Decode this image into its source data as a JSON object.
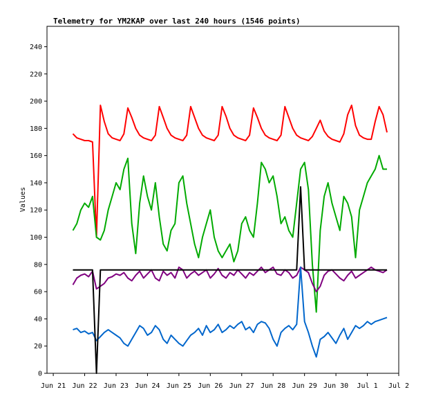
{
  "chart_data": {
    "type": "line",
    "title": "Telemetry for YM2KAP over last 240 hours (1546 points)",
    "y_label": "Values",
    "x": [
      0.625,
      0.75,
      0.875,
      1.0,
      1.125,
      1.25,
      1.375,
      1.5,
      1.625,
      1.75,
      1.875,
      2.0,
      2.125,
      2.25,
      2.375,
      2.5,
      2.625,
      2.75,
      2.875,
      3.0,
      3.125,
      3.25,
      3.375,
      3.5,
      3.625,
      3.75,
      3.875,
      4.0,
      4.125,
      4.25,
      4.375,
      4.5,
      4.625,
      4.75,
      4.875,
      5.0,
      5.125,
      5.25,
      5.375,
      5.5,
      5.625,
      5.75,
      5.875,
      6.0,
      6.125,
      6.25,
      6.375,
      6.5,
      6.625,
      6.75,
      6.875,
      7.0,
      7.125,
      7.25,
      7.375,
      7.5,
      7.625,
      7.75,
      7.875,
      8.0,
      8.125,
      8.25,
      8.375,
      8.5,
      8.625,
      8.75,
      8.875,
      9.0,
      9.125,
      9.25,
      9.375,
      9.5,
      9.625,
      9.75,
      9.875,
      10.0,
      10.125,
      10.25,
      10.375,
      10.5,
      10.625
    ],
    "series": [
      {
        "color": "#ff0000",
        "values": [
          176,
          173,
          172,
          171,
          171,
          170,
          100,
          197,
          185,
          176,
          173,
          172,
          171,
          176,
          195,
          188,
          180,
          175,
          173,
          172,
          171,
          175,
          196,
          188,
          180,
          175,
          173,
          172,
          171,
          175,
          196,
          188,
          180,
          175,
          173,
          172,
          171,
          175,
          196,
          189,
          180,
          175,
          173,
          172,
          171,
          175,
          195,
          188,
          180,
          175,
          173,
          172,
          171,
          175,
          196,
          188,
          180,
          175,
          173,
          172,
          171,
          174,
          180,
          186,
          178,
          174,
          172,
          171,
          170,
          176,
          190,
          197,
          182,
          175,
          173,
          172,
          172,
          185,
          196,
          190,
          177
        ]
      },
      {
        "color": "#00aa00",
        "values": [
          105,
          110,
          120,
          125,
          122,
          130,
          100,
          98,
          105,
          120,
          130,
          140,
          135,
          150,
          158,
          110,
          88,
          125,
          145,
          130,
          120,
          140,
          115,
          95,
          90,
          105,
          110,
          140,
          145,
          125,
          110,
          95,
          85,
          100,
          110,
          120,
          100,
          90,
          85,
          90,
          95,
          82,
          90,
          110,
          115,
          105,
          100,
          125,
          155,
          150,
          140,
          145,
          130,
          110,
          115,
          105,
          100,
          125,
          150,
          155,
          135,
          80,
          45,
          105,
          130,
          140,
          125,
          115,
          105,
          130,
          125,
          115,
          85,
          120,
          130,
          140,
          145,
          150,
          160,
          150,
          150
        ]
      },
      {
        "color": "#800080",
        "values": [
          65,
          70,
          72,
          73,
          71,
          75,
          62,
          64,
          66,
          70,
          71,
          73,
          72,
          74,
          70,
          68,
          72,
          75,
          70,
          73,
          76,
          70,
          68,
          75,
          72,
          74,
          70,
          78,
          76,
          70,
          73,
          75,
          72,
          74,
          76,
          70,
          73,
          77,
          72,
          70,
          74,
          72,
          76,
          73,
          70,
          74,
          72,
          75,
          78,
          74,
          76,
          78,
          73,
          72,
          76,
          74,
          70,
          72,
          78,
          76,
          74,
          66,
          60,
          64,
          72,
          75,
          76,
          73,
          70,
          68,
          72,
          75,
          70,
          72,
          74,
          76,
          78,
          76,
          75,
          74,
          76
        ]
      },
      {
        "color": "#0066cc",
        "values": [
          32,
          33,
          30,
          31,
          29,
          30,
          24,
          27,
          30,
          32,
          30,
          28,
          26,
          22,
          20,
          25,
          30,
          35,
          33,
          28,
          30,
          35,
          32,
          25,
          22,
          28,
          25,
          22,
          20,
          24,
          28,
          30,
          33,
          28,
          35,
          30,
          32,
          36,
          30,
          32,
          35,
          33,
          36,
          38,
          32,
          34,
          30,
          36,
          38,
          37,
          33,
          25,
          20,
          30,
          33,
          35,
          32,
          36,
          78,
          38,
          30,
          20,
          12,
          25,
          27,
          30,
          26,
          22,
          28,
          33,
          25,
          30,
          35,
          33,
          35,
          38,
          36,
          38,
          39,
          40,
          41
        ]
      },
      {
        "color": "#000000",
        "values": [
          76,
          76,
          76,
          76,
          76,
          76,
          0,
          76,
          76,
          76,
          76,
          76,
          76,
          76,
          76,
          76,
          76,
          76,
          76,
          76,
          76,
          76,
          76,
          76,
          76,
          76,
          76,
          76,
          76,
          76,
          76,
          76,
          76,
          76,
          76,
          76,
          76,
          76,
          76,
          76,
          76,
          76,
          76,
          76,
          76,
          76,
          76,
          76,
          76,
          76,
          76,
          76,
          76,
          76,
          76,
          76,
          76,
          76,
          137,
          76,
          76,
          76,
          76,
          76,
          76,
          76,
          76,
          76,
          76,
          76,
          76,
          76,
          76,
          76,
          76,
          76,
          76,
          76,
          76,
          76,
          76
        ]
      }
    ],
    "xlim": [
      -0.2,
      11
    ],
    "xticks": [
      {
        "value": 0,
        "label": "Jun 21"
      },
      {
        "value": 1,
        "label": "Jun 22"
      },
      {
        "value": 2,
        "label": "Jun 23"
      },
      {
        "value": 3,
        "label": "Jun 24"
      },
      {
        "value": 4,
        "label": "Jun 25"
      },
      {
        "value": 5,
        "label": "Jun 26"
      },
      {
        "value": 6,
        "label": "Jun 27"
      },
      {
        "value": 7,
        "label": "Jun 28"
      },
      {
        "value": 8,
        "label": "Jun 29"
      },
      {
        "value": 9,
        "label": "Jun 30"
      },
      {
        "value": 10,
        "label": "Jul 1"
      },
      {
        "value": 11,
        "label": "Jul 2"
      }
    ],
    "ylim": [
      0,
      255
    ],
    "yticks": [
      0,
      20,
      40,
      60,
      80,
      100,
      120,
      140,
      160,
      180,
      200,
      220,
      240
    ],
    "grid": false
  }
}
